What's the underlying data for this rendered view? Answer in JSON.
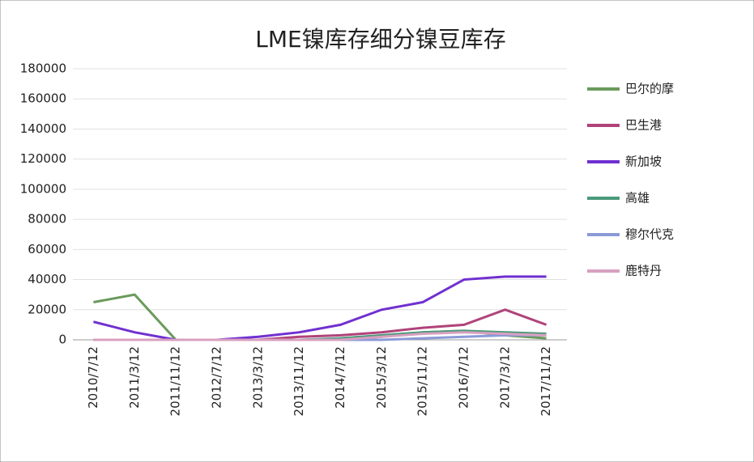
{
  "chart_data": {
    "type": "line",
    "title": "LME镍库存细分镍豆库存",
    "categories": [
      "2010/7/12",
      "2011/3/12",
      "2011/11/12",
      "2012/7/12",
      "2013/3/12",
      "2013/11/12",
      "2014/7/12",
      "2015/3/12",
      "2015/11/12",
      "2016/7/12",
      "2017/3/12",
      "2017/11/12"
    ],
    "series": [
      {
        "name": "巴尔的摩",
        "color": "#6a9a5b",
        "values": [
          25000,
          30000,
          0,
          0,
          0,
          0,
          0,
          2000,
          5000,
          6000,
          3000,
          1000
        ]
      },
      {
        "name": "巴生港",
        "color": "#b0437a",
        "values": [
          0,
          0,
          0,
          0,
          0,
          2000,
          3000,
          5000,
          8000,
          10000,
          20000,
          10000
        ]
      },
      {
        "name": "新加坡",
        "color": "#7030d0",
        "values": [
          12000,
          5000,
          0,
          0,
          2000,
          5000,
          10000,
          20000,
          25000,
          40000,
          42000,
          42000
        ]
      },
      {
        "name": "高雄",
        "color": "#4a9a7a",
        "values": [
          0,
          0,
          0,
          0,
          0,
          0,
          1000,
          3000,
          5000,
          6000,
          5000,
          4000
        ]
      },
      {
        "name": "穆尔代克",
        "color": "#8a9ad8",
        "values": [
          0,
          0,
          0,
          0,
          0,
          0,
          0,
          0,
          1000,
          2000,
          3000,
          3000
        ]
      },
      {
        "name": "鹿特丹",
        "color": "#d8a0c0",
        "values": [
          0,
          0,
          0,
          0,
          0,
          0,
          0,
          2000,
          4000,
          5000,
          4000,
          3000
        ]
      }
    ],
    "ylim": [
      0,
      180000
    ],
    "yticks": [
      0,
      20000,
      40000,
      60000,
      80000,
      100000,
      120000,
      140000,
      160000,
      180000
    ],
    "grid": true
  }
}
